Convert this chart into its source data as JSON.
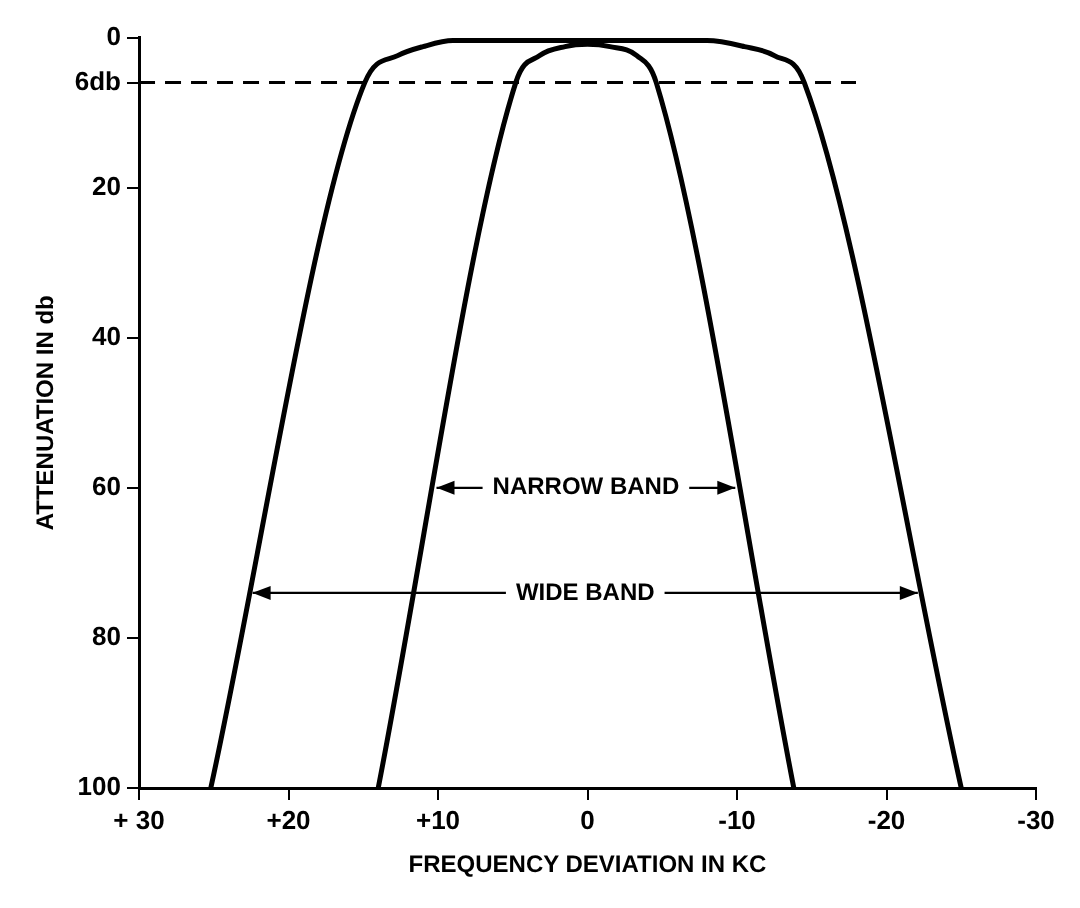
{
  "chart_data": {
    "type": "line",
    "xlabel": "FREQUENCY DEVIATION IN KC",
    "ylabel": "ATTENUATION IN db",
    "xlim": [
      30,
      -30
    ],
    "xticks": [
      {
        "value": 30,
        "label": "+ 30"
      },
      {
        "value": 20,
        "label": "+20"
      },
      {
        "value": 10,
        "label": "+10"
      },
      0,
      -10,
      -20,
      -30
    ],
    "ylim": [
      100,
      0
    ],
    "yticks": [
      0,
      {
        "value": 6,
        "label": "6db"
      },
      20,
      40,
      60,
      80,
      100
    ],
    "grid": false,
    "legend": false,
    "marker": "none",
    "line_style": "solid",
    "series": [
      {
        "color": "#000000",
        "x": [
          25.2,
          14.9,
          12.7,
          11,
          9,
          0,
          -8,
          -10.5,
          -12.5,
          -14.5,
          -25
        ],
        "values": [
          100,
          6,
          2.4,
          1.2,
          0.4,
          0.4,
          0.4,
          1.2,
          2.4,
          6,
          100
        ]
      },
      {
        "color": "#000000",
        "x": [
          14,
          4.8,
          3.2,
          1.5,
          0,
          -1.5,
          -3.3,
          -4.6,
          -13.8
        ],
        "values": [
          100,
          6,
          2.4,
          1.2,
          0.9,
          1.2,
          2.4,
          6,
          100
        ]
      }
    ],
    "ref_lines": [
      {
        "axis": "y",
        "value": 6,
        "line_style": "dashed",
        "color": "#000000"
      }
    ],
    "annotations": [
      {
        "text": "NARROW BAND",
        "x": 10.1,
        "y": 60
      },
      {
        "text": "WIDE BAND",
        "x": 22.4,
        "y": 74
      }
    ]
  }
}
